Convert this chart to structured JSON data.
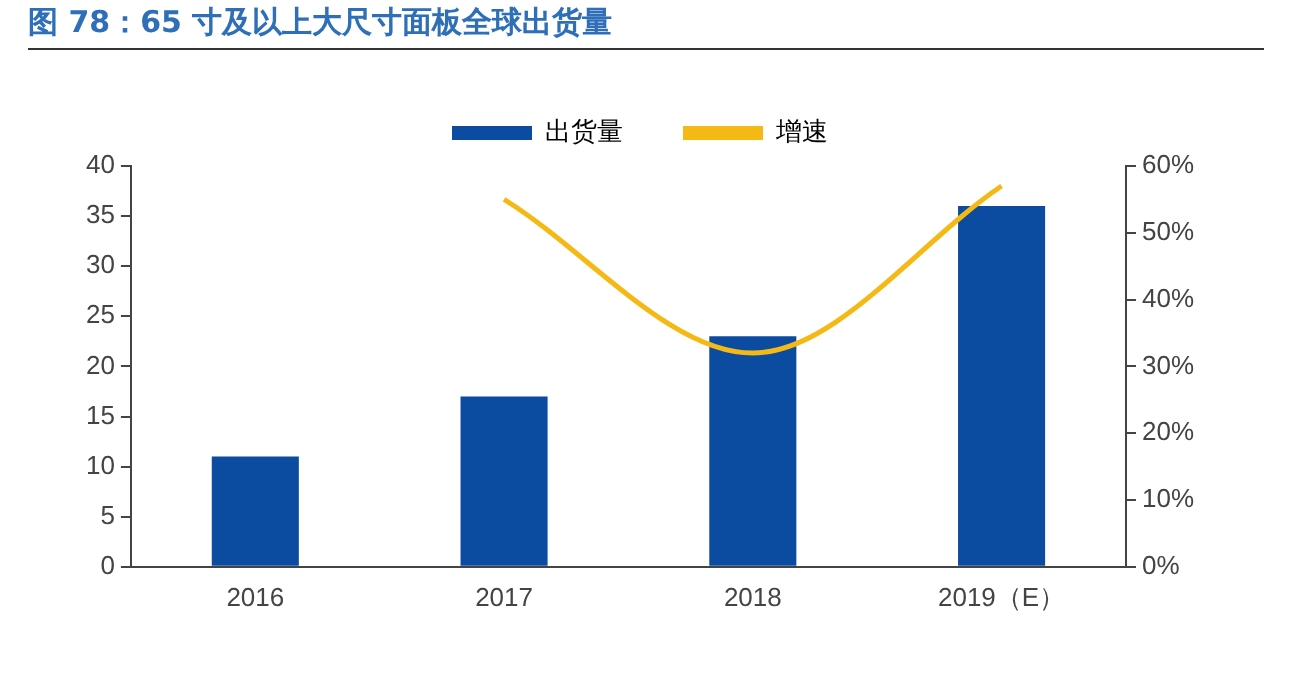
{
  "chart_data": {
    "type": "bar",
    "title": "图 78：65 寸及以上大尺寸面板全球出货量",
    "categories": [
      "2016",
      "2017",
      "2018",
      "2019（E）"
    ],
    "series": [
      {
        "name": "出货量",
        "color": "#0b4ba0",
        "values": [
          11,
          17,
          23,
          36
        ]
      },
      {
        "name": "增速",
        "type": "line",
        "axis": "y2",
        "color": "#f5b916",
        "values": [
          null,
          55,
          32,
          57
        ]
      }
    ],
    "ylim": [
      0,
      40
    ],
    "yticks": [
      0,
      5,
      10,
      15,
      20,
      25,
      30,
      35,
      40
    ],
    "y2lim": [
      0,
      60
    ],
    "y2ticks": [
      {
        "value": 0,
        "label": "0%"
      },
      {
        "value": 10,
        "label": "10%"
      },
      {
        "value": 20,
        "label": "20%"
      },
      {
        "value": 30,
        "label": "30%"
      },
      {
        "value": 40,
        "label": "40%"
      },
      {
        "value": 50,
        "label": "50%"
      },
      {
        "value": 60,
        "label": "60%"
      }
    ],
    "grid": false,
    "legend": "top",
    "marker": "none",
    "line_style": "solid"
  }
}
